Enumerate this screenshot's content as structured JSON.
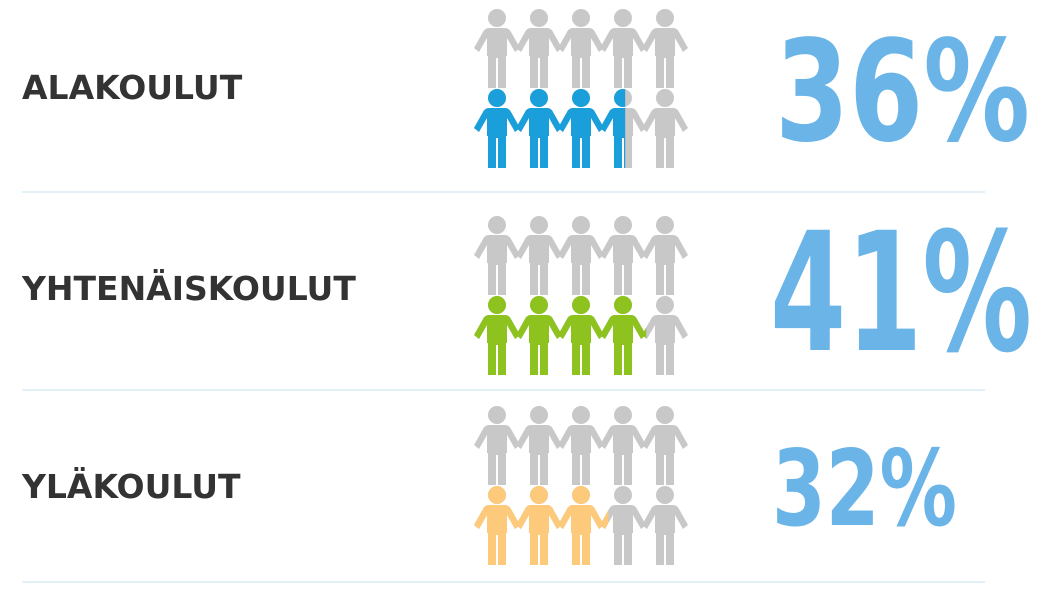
{
  "chart_data": {
    "type": "pictograph",
    "categories": [
      "ALAKOULUT",
      "YHTENÄISKOULUT",
      "YLÄKOULUT"
    ],
    "values": [
      36,
      41,
      32
    ],
    "value_labels": [
      "36%",
      "41%",
      "32%"
    ],
    "colors": [
      "#1a9fdb",
      "#8dc21f",
      "#fdc97a"
    ],
    "ylim": [
      0,
      100
    ]
  }
}
